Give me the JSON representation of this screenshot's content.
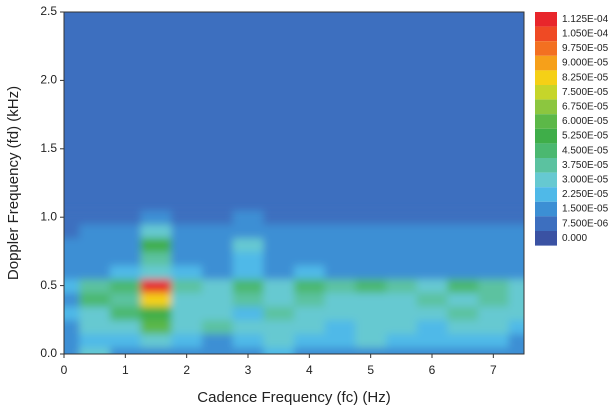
{
  "chart_data": {
    "type": "contour",
    "x_label": "Cadence Frequency (fc) (Hz)",
    "y_label": "Doppler Frequency (fd) (kHz)",
    "xlim": [
      0,
      7.5
    ],
    "ylim": [
      0,
      2.5
    ],
    "xticks": [
      0,
      1,
      2,
      3,
      4,
      5,
      6,
      7
    ],
    "yticks": [
      {
        "value": 0,
        "label": "0.0"
      },
      0.5,
      {
        "value": 1,
        "label": "1.0"
      },
      1.5,
      {
        "value": 2,
        "label": "2.0"
      },
      2.5
    ],
    "x": [
      0,
      0.5,
      1,
      1.5,
      2,
      2.5,
      3,
      3.5,
      4,
      4.5,
      5,
      5.5,
      6,
      6.5,
      7,
      7.5
    ],
    "y": [
      0,
      0.1,
      0.2,
      0.3,
      0.4,
      0.5,
      0.6,
      0.7,
      0.8,
      0.9,
      1.0
    ],
    "z": [
      [
        1e-05,
        3e-05,
        1.5e-05,
        1.5e-05,
        1.5e-05,
        1e-05,
        1.5e-05,
        2e-05,
        1.5e-05,
        1e-05,
        1.5e-05,
        1e-05,
        1.5e-05,
        1e-05,
        1.5e-05,
        1e-05
      ],
      [
        1e-05,
        2e-05,
        2e-05,
        3e-05,
        2e-05,
        1.5e-05,
        2e-05,
        2.5e-05,
        2e-05,
        2e-05,
        2.5e-05,
        2e-05,
        2e-05,
        2e-05,
        2e-05,
        1.5e-05
      ],
      [
        1.5e-05,
        2.5e-05,
        3e-05,
        6e-05,
        3e-05,
        3.5e-05,
        2.5e-05,
        3e-05,
        3e-05,
        2e-05,
        3e-05,
        2.5e-05,
        2e-05,
        3e-05,
        2.5e-05,
        2e-05
      ],
      [
        2e-05,
        3e-05,
        4e-05,
        5e-05,
        3e-05,
        3e-05,
        2e-05,
        3.5e-05,
        3e-05,
        2.5e-05,
        3e-05,
        3e-05,
        2.5e-05,
        3.5e-05,
        2.5e-05,
        3e-05
      ],
      [
        1.5e-05,
        4e-05,
        3.5e-05,
        8e-05,
        3e-05,
        2.5e-05,
        3.5e-05,
        2.5e-05,
        3.5e-05,
        3e-05,
        2.5e-05,
        3e-05,
        3.5e-05,
        3e-05,
        3.5e-05,
        2.5e-05
      ],
      [
        2e-05,
        3.5e-05,
        4e-05,
        0.00011,
        3.5e-05,
        3e-05,
        4e-05,
        3e-05,
        4e-05,
        3.5e-05,
        4e-05,
        3.5e-05,
        3e-05,
        4e-05,
        3.5e-05,
        3e-05
      ],
      [
        1e-05,
        1.5e-05,
        2e-05,
        3e-05,
        2e-05,
        1.5e-05,
        2e-05,
        1.5e-05,
        2e-05,
        1.5e-05,
        1.5e-05,
        1.5e-05,
        1.5e-05,
        1.5e-05,
        1.5e-05,
        1.5e-05
      ],
      [
        8e-06,
        1.5e-05,
        1.5e-05,
        3.5e-05,
        1.5e-05,
        1.5e-05,
        2e-05,
        1.5e-05,
        1.5e-05,
        1e-05,
        1.5e-05,
        1e-05,
        1e-05,
        1e-05,
        1e-05,
        1e-05
      ],
      [
        8e-06,
        1e-05,
        1.5e-05,
        5e-05,
        1.5e-05,
        1e-05,
        2.5e-05,
        1.5e-05,
        1e-05,
        1e-05,
        1e-05,
        8e-06,
        1e-05,
        8e-06,
        1e-05,
        8e-06
      ],
      [
        5e-06,
        8e-06,
        1e-05,
        2.5e-05,
        1e-05,
        8e-06,
        1.5e-05,
        8e-06,
        8e-06,
        8e-06,
        1e-05,
        8e-06,
        8e-06,
        8e-06,
        8e-06,
        8e-06
      ],
      [
        3e-06,
        5e-06,
        5e-06,
        1e-05,
        5e-06,
        5e-06,
        8e-06,
        5e-06,
        5e-06,
        5e-06,
        5e-06,
        5e-06,
        5e-06,
        5e-06,
        5e-06,
        5e-06
      ]
    ],
    "levels": [
      {
        "value": 0.0001125,
        "label": "1.125E-04"
      },
      {
        "value": 0.000105,
        "label": "1.050E-04"
      },
      {
        "value": 9.75e-05,
        "label": "9.750E-05"
      },
      {
        "value": 9e-05,
        "label": "9.000E-05"
      },
      {
        "value": 8.25e-05,
        "label": "8.250E-05"
      },
      {
        "value": 7.5e-05,
        "label": "7.500E-05"
      },
      {
        "value": 6.75e-05,
        "label": "6.750E-05"
      },
      {
        "value": 6e-05,
        "label": "6.000E-05"
      },
      {
        "value": 5.25e-05,
        "label": "5.250E-05"
      },
      {
        "value": 4.5e-05,
        "label": "4.500E-05"
      },
      {
        "value": 3.75e-05,
        "label": "3.750E-05"
      },
      {
        "value": 3e-05,
        "label": "3.000E-05"
      },
      {
        "value": 2.25e-05,
        "label": "2.250E-05"
      },
      {
        "value": 1.5e-05,
        "label": "1.500E-05"
      },
      {
        "value": 7.5e-06,
        "label": "7.500E-06"
      },
      {
        "value": 0,
        "label": "0.000"
      }
    ],
    "colors": [
      "#e8262b",
      "#ef4a24",
      "#f37021",
      "#f6a01a",
      "#f5d016",
      "#c6d52a",
      "#8cc63f",
      "#5cb848",
      "#3fae49",
      "#4bb870",
      "#5bc2a0",
      "#66c9d1",
      "#4fb9e8",
      "#3c8fd4",
      "#3d6fbf",
      "#3a52a3",
      "#000000"
    ]
  }
}
